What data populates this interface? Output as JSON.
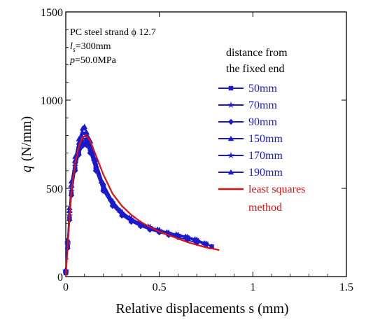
{
  "chart_data": {
    "type": "line",
    "xlabel": "Relative displacements s (mm)",
    "ylabel_symbol": "q",
    "ylabel_unit": "(N/mm)",
    "xlim": [
      0,
      1.5
    ],
    "ylim": [
      0,
      1500
    ],
    "xticks": [
      0,
      0.5,
      1,
      1.5
    ],
    "xtick_labels": [
      "0",
      "0.5",
      "1",
      "1.5"
    ],
    "yticks": [
      0,
      500,
      1000,
      1500
    ],
    "ytick_labels": [
      "0",
      "500",
      "1000",
      "1500"
    ],
    "grid": false,
    "annotations": [
      "PC steel strand  ϕ 12.7",
      "l",
      "s",
      "=300mm",
      "p",
      "=50.0MPa",
      "distance from",
      "the fixed end"
    ],
    "legend_placement": "right",
    "series": [
      {
        "name": "50mm",
        "color": "#1a1acc",
        "marker": "square",
        "x": [
          0,
          0.01,
          0.02,
          0.03,
          0.05,
          0.07,
          0.09,
          0.11,
          0.13,
          0.16,
          0.2,
          0.25,
          0.3,
          0.35,
          0.4,
          0.45,
          0.5,
          0.55,
          0.6,
          0.65,
          0.7,
          0.75,
          0.78
        ],
        "y": [
          20,
          170,
          330,
          470,
          610,
          700,
          750,
          760,
          720,
          620,
          500,
          410,
          350,
          315,
          290,
          270,
          255,
          240,
          230,
          220,
          205,
          185,
          170
        ]
      },
      {
        "name": "70mm",
        "color": "#1a1acc",
        "marker": "star",
        "x": [
          0,
          0.01,
          0.02,
          0.03,
          0.05,
          0.07,
          0.09,
          0.11,
          0.13,
          0.16,
          0.2,
          0.25,
          0.3,
          0.35,
          0.4,
          0.45,
          0.5,
          0.55,
          0.6,
          0.65,
          0.7,
          0.75
        ],
        "y": [
          30,
          190,
          360,
          500,
          640,
          730,
          790,
          800,
          750,
          650,
          520,
          420,
          360,
          325,
          300,
          280,
          262,
          248,
          236,
          222,
          205,
          182
        ]
      },
      {
        "name": "90mm",
        "color": "#1a1acc",
        "marker": "diamond",
        "x": [
          0,
          0.01,
          0.02,
          0.03,
          0.05,
          0.07,
          0.09,
          0.11,
          0.13,
          0.16,
          0.2,
          0.25,
          0.3,
          0.35,
          0.4,
          0.45,
          0.5,
          0.55,
          0.6,
          0.65,
          0.7
        ],
        "y": [
          25,
          160,
          320,
          460,
          600,
          690,
          740,
          745,
          700,
          600,
          485,
          400,
          345,
          310,
          285,
          265,
          250,
          235,
          222,
          208,
          190
        ]
      },
      {
        "name": "150mm",
        "color": "#1a1acc",
        "marker": "triangle",
        "x": [
          0,
          0.01,
          0.02,
          0.03,
          0.05,
          0.07,
          0.09,
          0.1,
          0.12,
          0.15,
          0.19,
          0.24,
          0.29,
          0.34,
          0.39,
          0.44,
          0.49,
          0.54,
          0.59,
          0.64,
          0.69,
          0.74,
          0.78
        ],
        "y": [
          40,
          210,
          390,
          540,
          680,
          780,
          840,
          850,
          790,
          670,
          540,
          440,
          375,
          335,
          305,
          285,
          268,
          252,
          240,
          228,
          212,
          190,
          170
        ]
      },
      {
        "name": "170mm",
        "color": "#1a1acc",
        "marker": "star",
        "x": [
          0,
          0.01,
          0.02,
          0.03,
          0.05,
          0.07,
          0.09,
          0.11,
          0.13,
          0.16,
          0.2,
          0.25,
          0.3,
          0.35,
          0.4,
          0.45,
          0.5,
          0.55,
          0.6,
          0.65,
          0.7,
          0.75
        ],
        "y": [
          35,
          180,
          345,
          485,
          625,
          715,
          770,
          780,
          735,
          635,
          510,
          415,
          355,
          320,
          295,
          275,
          258,
          244,
          232,
          218,
          200,
          178
        ]
      },
      {
        "name": "190mm",
        "color": "#1a1acc",
        "marker": "triangle",
        "x": [
          0,
          0.01,
          0.02,
          0.03,
          0.05,
          0.07,
          0.09,
          0.11,
          0.13,
          0.16,
          0.2,
          0.25,
          0.3,
          0.35,
          0.4,
          0.45,
          0.5,
          0.55,
          0.6,
          0.65,
          0.7,
          0.75,
          0.78
        ],
        "y": [
          30,
          200,
          375,
          520,
          660,
          760,
          815,
          820,
          770,
          660,
          530,
          430,
          368,
          330,
          302,
          282,
          265,
          250,
          238,
          226,
          210,
          188,
          168
        ]
      },
      {
        "name": "least squares method",
        "name_line1": "least squares",
        "name_line2": "method",
        "color": "#dd1111",
        "marker": "none",
        "x": [
          0,
          0.01,
          0.02,
          0.03,
          0.05,
          0.07,
          0.09,
          0.11,
          0.13,
          0.16,
          0.2,
          0.25,
          0.3,
          0.35,
          0.4,
          0.45,
          0.5,
          0.55,
          0.6,
          0.65,
          0.7,
          0.75,
          0.8,
          0.82
        ],
        "y": [
          0,
          170,
          340,
          480,
          640,
          740,
          790,
          800,
          770,
          690,
          580,
          470,
          400,
          350,
          310,
          280,
          255,
          235,
          215,
          195,
          180,
          165,
          155,
          150
        ]
      }
    ]
  }
}
